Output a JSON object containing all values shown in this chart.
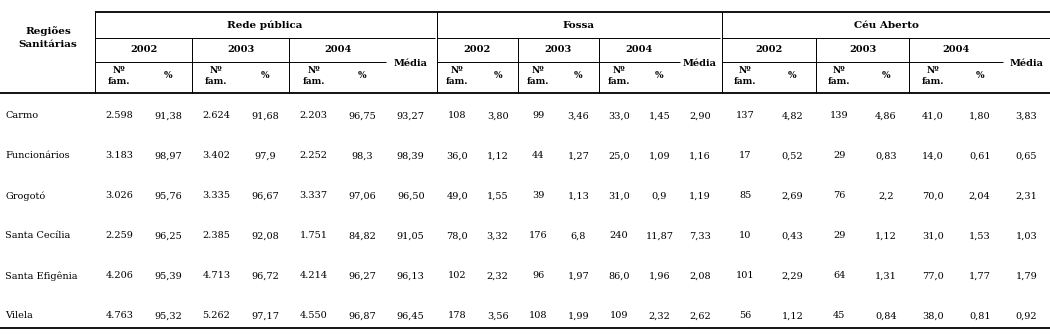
{
  "regions": [
    "Carmo",
    "Funcionários",
    "Grogotó",
    "Santa Cecília",
    "Santa Efigênia",
    "Vilela"
  ],
  "rede_publica": {
    "2002": [
      [
        "2.598",
        "91,38"
      ],
      [
        "3.183",
        "98,97"
      ],
      [
        "3.026",
        "95,76"
      ],
      [
        "2.259",
        "96,25"
      ],
      [
        "4.206",
        "95,39"
      ],
      [
        "4.763",
        "95,32"
      ]
    ],
    "2003": [
      [
        "2.624",
        "91,68"
      ],
      [
        "3.402",
        "97,9"
      ],
      [
        "3.335",
        "96,67"
      ],
      [
        "2.385",
        "92,08"
      ],
      [
        "4.713",
        "96,72"
      ],
      [
        "5.262",
        "97,17"
      ]
    ],
    "2004": [
      [
        "2.203",
        "96,75"
      ],
      [
        "2.252",
        "98,3"
      ],
      [
        "3.337",
        "97,06"
      ],
      [
        "1.751",
        "84,82"
      ],
      [
        "4.214",
        "96,27"
      ],
      [
        "4.550",
        "96,87"
      ]
    ],
    "media": [
      "93,27",
      "98,39",
      "96,50",
      "91,05",
      "96,13",
      "96,45"
    ]
  },
  "fossa": {
    "2002": [
      [
        "108",
        "3,80"
      ],
      [
        "36,0",
        "1,12"
      ],
      [
        "49,0",
        "1,55"
      ],
      [
        "78,0",
        "3,32"
      ],
      [
        "102",
        "2,32"
      ],
      [
        "178",
        "3,56"
      ]
    ],
    "2003": [
      [
        "99",
        "3,46"
      ],
      [
        "44",
        "1,27"
      ],
      [
        "39",
        "1,13"
      ],
      [
        "176",
        "6,8"
      ],
      [
        "96",
        "1,97"
      ],
      [
        "108",
        "1,99"
      ]
    ],
    "2004": [
      [
        "33,0",
        "1,45"
      ],
      [
        "25,0",
        "1,09"
      ],
      [
        "31,0",
        "0,9"
      ],
      [
        "240",
        "11,87"
      ],
      [
        "86,0",
        "1,96"
      ],
      [
        "109",
        "2,32"
      ]
    ],
    "media": [
      "2,90",
      "1,16",
      "1,19",
      "7,33",
      "2,08",
      "2,62"
    ]
  },
  "ceu_aberto": {
    "2002": [
      [
        "137",
        "4,82"
      ],
      [
        "17",
        "0,52"
      ],
      [
        "85",
        "2,69"
      ],
      [
        "10",
        "0,43"
      ],
      [
        "101",
        "2,29"
      ],
      [
        "56",
        "1,12"
      ]
    ],
    "2003": [
      [
        "139",
        "4,86"
      ],
      [
        "29",
        "0,83"
      ],
      [
        "76",
        "2,2"
      ],
      [
        "29",
        "1,12"
      ],
      [
        "64",
        "1,31"
      ],
      [
        "45",
        "0,84"
      ]
    ],
    "2004": [
      [
        "41,0",
        "1,80"
      ],
      [
        "14,0",
        "0,61"
      ],
      [
        "70,0",
        "2,04"
      ],
      [
        "31,0",
        "1,53"
      ],
      [
        "77,0",
        "1,77"
      ],
      [
        "38,0",
        "0,81"
      ]
    ],
    "media": [
      "3,83",
      "0,65",
      "2,31",
      "1,03",
      "1,79",
      "0,92"
    ]
  },
  "col_bg": "#ffffff",
  "text_color": "#000000",
  "line_color": "#000000",
  "figsize": [
    10.5,
    3.34
  ],
  "dpi": 100
}
